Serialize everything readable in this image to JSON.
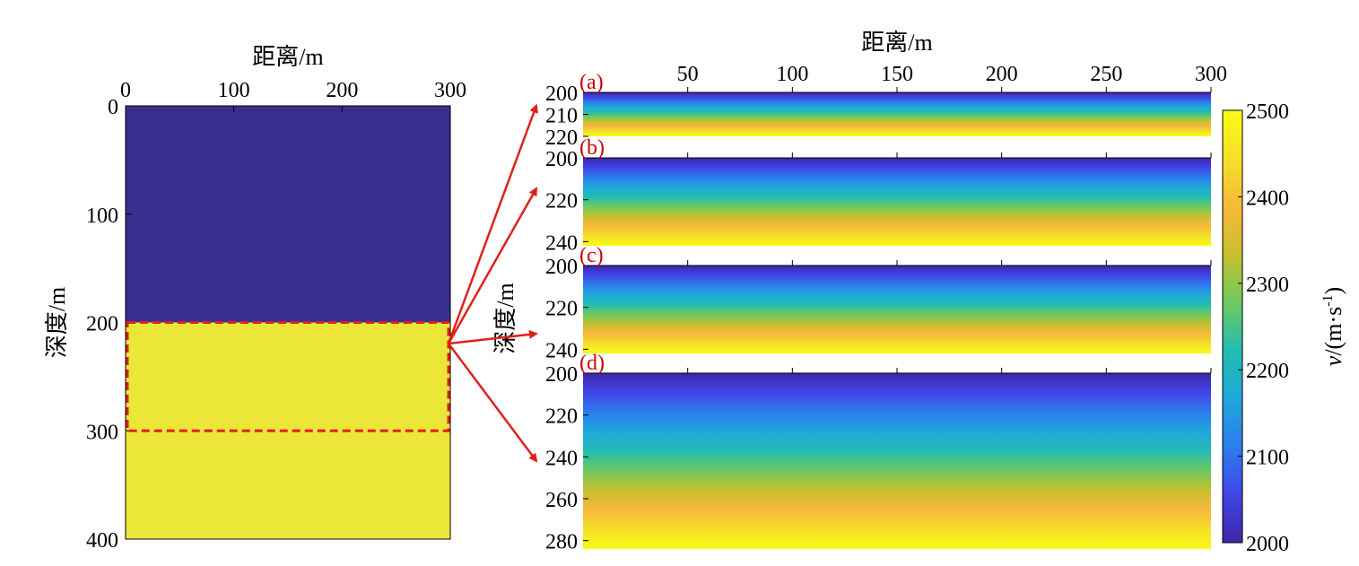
{
  "chart_data": [
    {
      "type": "heatmap",
      "panel": "overview",
      "xlabel": "距离/m",
      "ylabel": "深度/m",
      "xlim": [
        0,
        300
      ],
      "ylim": [
        0,
        400
      ],
      "x_ticks": [
        0,
        100,
        200,
        300
      ],
      "y_ticks": [
        0,
        100,
        200,
        300,
        400
      ],
      "x_axis_position": "top",
      "y_inverted": true,
      "regions": [
        {
          "depth_from": 0,
          "depth_to": 200,
          "velocity": 2000,
          "color": "#3a2f8f"
        },
        {
          "depth_from": 200,
          "depth_to": 400,
          "velocity": 2500,
          "color": "#ece638"
        }
      ],
      "highlight_box": {
        "x_from": 0,
        "x_to": 300,
        "depth_from": 200,
        "depth_to": 300,
        "color": "#e0201b",
        "style": "dashed"
      }
    },
    {
      "type": "heatmap",
      "panel": "(a)",
      "label": "(a)",
      "x_ticks": [
        50,
        100,
        150,
        200,
        250,
        300
      ],
      "xlim": [
        0,
        300
      ],
      "y_ticks": [
        200,
        210,
        220
      ],
      "ylim": [
        200,
        220
      ],
      "gradient": "vertical",
      "velocity_range": [
        2000,
        2500
      ]
    },
    {
      "type": "heatmap",
      "panel": "(b)",
      "label": "(b)",
      "xlim": [
        0,
        300
      ],
      "y_ticks": [
        200,
        220,
        240
      ],
      "ylim": [
        200,
        242
      ],
      "gradient": "vertical",
      "velocity_range": [
        2000,
        2500
      ]
    },
    {
      "type": "heatmap",
      "panel": "(c)",
      "label": "(c)",
      "xlim": [
        0,
        300
      ],
      "y_ticks": [
        200,
        220,
        240
      ],
      "ylim": [
        200,
        242
      ],
      "gradient": "vertical",
      "velocity_range": [
        2000,
        2500
      ]
    },
    {
      "type": "heatmap",
      "panel": "(d)",
      "label": "(d)",
      "xlim": [
        0,
        300
      ],
      "y_ticks": [
        200,
        220,
        240,
        260,
        280
      ],
      "ylim": [
        200,
        284
      ],
      "gradient": "vertical",
      "velocity_range": [
        2000,
        2500
      ]
    }
  ],
  "right_xlabel": "距离/m",
  "right_ylabel": "深度/m",
  "colorbar": {
    "label_italic": "v",
    "label_rest": "/(m·s",
    "label_sup": "-1",
    "label_close": ")",
    "ticks": [
      2000,
      2100,
      2200,
      2300,
      2400,
      2500
    ],
    "range": [
      2000,
      2500
    ],
    "colormap": [
      "#3e26a8",
      "#4145e8",
      "#2d7ded",
      "#1fa8db",
      "#23bcb1",
      "#6ec960",
      "#c8bf2f",
      "#f8b83a",
      "#f5e028",
      "#f9fb15"
    ]
  },
  "arrow_color": "#e0201b"
}
